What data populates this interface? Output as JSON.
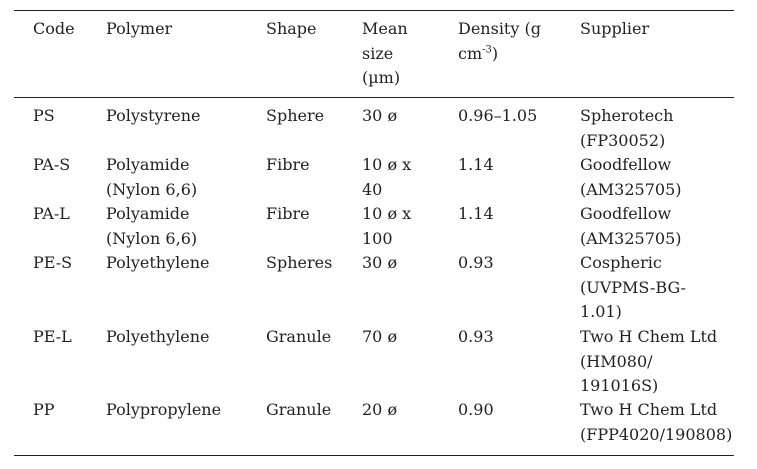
{
  "table": {
    "header": [
      [
        "Code"
      ],
      [
        "Polymer"
      ],
      [
        "Shape"
      ],
      [
        "Mean",
        "size",
        "(µm)"
      ],
      [
        {
          "text": "Density (g",
          "sup": null
        },
        {
          "text": "cm",
          "sup": "-3",
          "after": ")"
        }
      ],
      [
        "Supplier"
      ]
    ],
    "rows": [
      [
        [
          "PS"
        ],
        [
          "Polystyrene"
        ],
        [
          "Sphere"
        ],
        [
          "30 ø"
        ],
        [
          "0.96–1.05"
        ],
        [
          "Spherotech",
          "(FP30052)"
        ]
      ],
      [
        [
          "PA-S"
        ],
        [
          "Polyamide",
          "(Nylon 6,6)"
        ],
        [
          "Fibre"
        ],
        [
          "10 ø x",
          "40"
        ],
        [
          "1.14"
        ],
        [
          "Goodfellow",
          "(AM325705)"
        ]
      ],
      [
        [
          "PA-L"
        ],
        [
          "Polyamide",
          "(Nylon 6,6)"
        ],
        [
          "Fibre"
        ],
        [
          "10 ø x",
          "100"
        ],
        [
          "1.14"
        ],
        [
          "Goodfellow",
          "(AM325705)"
        ]
      ],
      [
        [
          "PE-S"
        ],
        [
          "Polyethylene"
        ],
        [
          "Spheres"
        ],
        [
          "30 ø"
        ],
        [
          "0.93"
        ],
        [
          "Cospheric",
          "(UVPMS-BG-",
          "1.01)"
        ]
      ],
      [
        [
          "PE-L"
        ],
        [
          "Polyethylene"
        ],
        [
          "Granule"
        ],
        [
          "70 ø"
        ],
        [
          "0.93"
        ],
        [
          "Two H Chem Ltd",
          "(HM080/",
          "191016S)"
        ]
      ],
      [
        [
          "PP"
        ],
        [
          "Polypropylene"
        ],
        [
          "Granule"
        ],
        [
          "20 ø"
        ],
        [
          "0.90"
        ],
        [
          "Two H Chem Ltd",
          "(FPP4020/190808)"
        ]
      ]
    ]
  }
}
